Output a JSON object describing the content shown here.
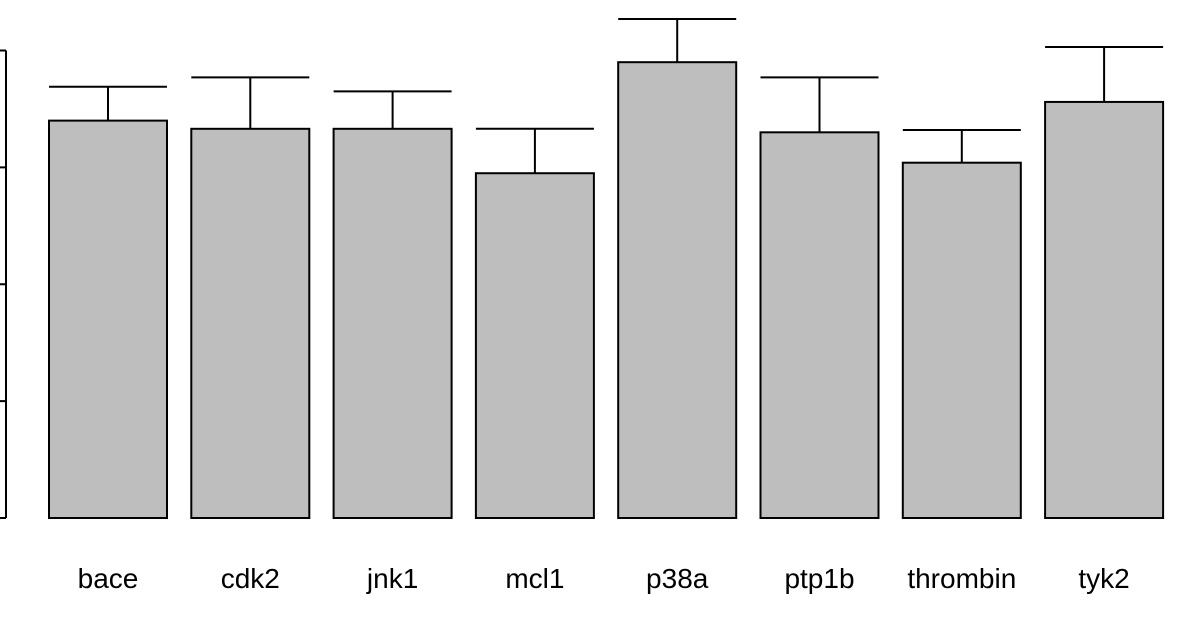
{
  "chart_data": {
    "type": "bar",
    "categories": [
      "bace",
      "cdk2",
      "jnk1",
      "mcl1",
      "p38a",
      "ptp1b",
      "thrombin",
      "tyk2"
    ],
    "values": [
      3.4,
      3.33,
      3.33,
      2.95,
      3.9,
      3.3,
      3.04,
      3.56
    ],
    "error_upper": [
      3.69,
      3.77,
      3.65,
      3.33,
      4.27,
      3.77,
      3.32,
      4.03
    ],
    "ylim": [
      0,
      4.0
    ],
    "yticks": [
      0,
      1,
      2,
      3,
      4
    ],
    "title": "",
    "xlabel": "",
    "ylabel": "",
    "grid": false,
    "bar_color": "#bebebe",
    "edge_color": "#000000"
  }
}
